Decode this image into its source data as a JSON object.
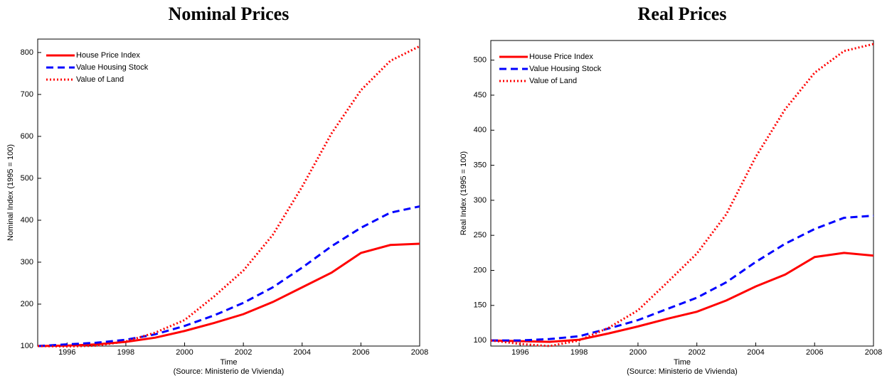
{
  "chart_data": [
    {
      "type": "line",
      "title": "Nominal Prices",
      "x_label": "Time",
      "source": "(Source: Ministerio de Vivienda)",
      "y_label": "Nominal Index (1995 = 100)",
      "x": [
        1995,
        1996,
        1997,
        1998,
        1999,
        2000,
        2001,
        2002,
        2003,
        2004,
        2005,
        2006,
        2007,
        2008
      ],
      "xlim": [
        1995,
        2008
      ],
      "xticks": [
        1996,
        1998,
        2000,
        2002,
        2004,
        2006,
        2008
      ],
      "ylim": [
        100,
        832
      ],
      "yticks": [
        100,
        200,
        300,
        400,
        500,
        600,
        700,
        800
      ],
      "grid": false,
      "legend": "upper left",
      "series": [
        {
          "name": "House Price Index",
          "color": "#ff0000",
          "dash": "solid",
          "values": [
            100,
            101,
            104,
            110,
            120,
            136,
            155,
            176,
            205,
            240,
            275,
            322,
            341,
            344
          ]
        },
        {
          "name": "Value Housing Stock",
          "color": "#0000ff",
          "dash": "dashed",
          "values": [
            100,
            104,
            108,
            115,
            128,
            148,
            173,
            203,
            240,
            287,
            338,
            382,
            418,
            433
          ]
        },
        {
          "name": "Value of Land",
          "color": "#ff0000",
          "dash": "dotted",
          "values": [
            100,
            99,
            101,
            111,
            132,
            162,
            218,
            280,
            365,
            480,
            607,
            710,
            780,
            815
          ]
        }
      ]
    },
    {
      "type": "line",
      "title": "Real Prices",
      "x_label": "Time",
      "source": "(Source: Ministerio de Vivienda)",
      "y_label": "Real Index (1995 = 100)",
      "x": [
        1995,
        1996,
        1997,
        1998,
        1999,
        2000,
        2001,
        2002,
        2003,
        2004,
        2005,
        2006,
        2007,
        2008
      ],
      "xlim": [
        1995,
        2008
      ],
      "xticks": [
        1996,
        1998,
        2000,
        2002,
        2004,
        2006,
        2008
      ],
      "ylim": [
        92,
        528
      ],
      "yticks": [
        100,
        150,
        200,
        250,
        300,
        350,
        400,
        450,
        500
      ],
      "grid": false,
      "legend": "upper left",
      "series": [
        {
          "name": "House Price Index",
          "color": "#ff0000",
          "dash": "solid",
          "values": [
            100,
            99,
            98,
            101,
            110,
            120,
            131,
            141,
            157,
            177,
            194,
            219,
            225,
            221
          ]
        },
        {
          "name": "Value Housing Stock",
          "color": "#0000ff",
          "dash": "dashed",
          "values": [
            100,
            100,
            102,
            106,
            117,
            129,
            145,
            161,
            183,
            212,
            238,
            259,
            275,
            278
          ]
        },
        {
          "name": "Value of Land",
          "color": "#ff0000",
          "dash": "dotted",
          "values": [
            100,
            95,
            92,
            100,
            118,
            143,
            183,
            224,
            280,
            362,
            430,
            482,
            513,
            523
          ]
        }
      ]
    }
  ]
}
